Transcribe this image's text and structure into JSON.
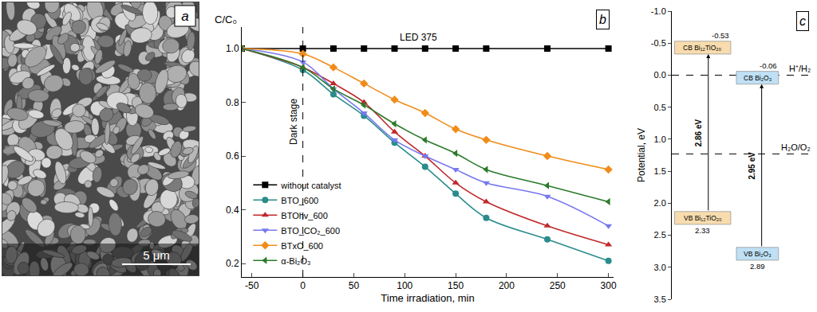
{
  "image": {
    "panel": "a",
    "scale_bar": "5 μm"
  },
  "chart_data": [
    {
      "panel": "b",
      "type": "line",
      "xlabel": "Time irradiation, min",
      "ylabel": "C/C₀",
      "annotations": [
        {
          "text": "LED 375"
        },
        {
          "text": "Dark stage",
          "x": 0
        }
      ],
      "x": [
        -60,
        0,
        30,
        60,
        90,
        120,
        150,
        180,
        240,
        300
      ],
      "series": [
        {
          "name": "without catalyst",
          "color": "#000000",
          "marker": "square",
          "line_style": "solid",
          "values": [
            1.0,
            1.0,
            1.0,
            1.0,
            1.0,
            1.0,
            1.0,
            1.0,
            1.0,
            1.0
          ]
        },
        {
          "name": "BTO_600",
          "color": "#2a8c8c",
          "marker": "circle",
          "line_style": "solid",
          "values": [
            1.0,
            0.92,
            0.83,
            0.75,
            0.65,
            0.56,
            0.46,
            0.37,
            0.29,
            0.21
          ]
        },
        {
          "name": "BTOhv_600",
          "color": "#c0282a",
          "marker": "triangle-up",
          "line_style": "solid",
          "values": [
            1.0,
            0.93,
            0.87,
            0.8,
            0.69,
            0.6,
            0.5,
            0.43,
            0.34,
            0.27
          ]
        },
        {
          "name": "BTO_CO₂_600",
          "color": "#7878f0",
          "marker": "triangle-down",
          "line_style": "solid",
          "values": [
            1.0,
            0.95,
            0.85,
            0.76,
            0.66,
            0.6,
            0.55,
            0.5,
            0.45,
            0.34
          ]
        },
        {
          "name": "BTxO_600",
          "color": "#f08c1a",
          "marker": "diamond",
          "line_style": "solid",
          "values": [
            1.0,
            0.98,
            0.93,
            0.87,
            0.81,
            0.76,
            0.7,
            0.66,
            0.6,
            0.55
          ]
        },
        {
          "name": "α-Bi₂O₃",
          "color": "#2a7a2a",
          "marker": "triangle-left",
          "line_style": "solid",
          "values": [
            1.0,
            0.93,
            0.85,
            0.79,
            0.72,
            0.66,
            0.61,
            0.55,
            0.49,
            0.43
          ]
        }
      ],
      "xlim": [
        -60,
        305
      ],
      "xticks": [
        -50,
        0,
        50,
        100,
        150,
        200,
        250,
        300
      ],
      "ylim": [
        0.15,
        1.08
      ],
      "yticks": [
        0.2,
        0.4,
        0.6,
        0.8,
        {
          "value": 1,
          "label": "1.0"
        }
      ],
      "grid": false,
      "legend": "lower left"
    },
    {
      "panel": "c",
      "type": "band",
      "ylabel": "Potential, eV",
      "ylim": [
        3.5,
        -1.0
      ],
      "yticks": [
        {
          "value": -1,
          "label": "-1.0"
        },
        -0.5,
        {
          "value": 0,
          "label": "0.0"
        },
        0.5,
        {
          "value": 1,
          "label": "1.0"
        },
        1.5,
        {
          "value": 2,
          "label": "2.0"
        },
        2.5,
        {
          "value": 3,
          "label": "3.0"
        },
        3.5
      ],
      "tick_labels": "y",
      "grid": false,
      "materials": [
        {
          "color": "#f8dcae",
          "cb": -0.53,
          "vb": 2.33,
          "cb_label": "CB Bi₁₂TiO₂₀",
          "vb_label": "VB Bi₁₂TiO₂₀",
          "gap_label": "2.86 eV"
        },
        {
          "color": "#bfe0f5",
          "cb": -0.06,
          "vb": 2.89,
          "cb_label": "CB Bi₂O₃",
          "vb_label": "VB Bi₂O₃",
          "gap_label": "2.95 eV"
        }
      ],
      "levels": [
        {
          "label": "H⁺/H₂",
          "value": 0
        },
        {
          "label": "H₂O/O₂",
          "value": 1.23
        }
      ]
    }
  ]
}
